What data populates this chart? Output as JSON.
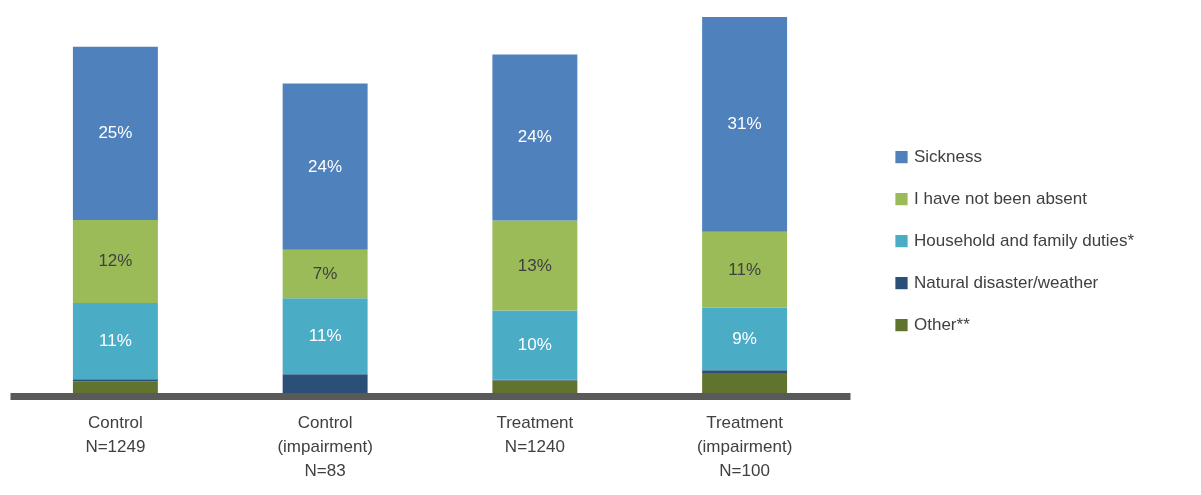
{
  "chart_data": {
    "type": "bar",
    "stacked": true,
    "tick_labels": "x",
    "legend": "right",
    "categories": [
      "Control\nN=1249",
      "Control\n(impairment)\nN=83",
      "Treatment\nN=1240",
      "Treatment\n(impairment)\nN=100"
    ],
    "series": [
      {
        "name": "Other**",
        "color": "#607430",
        "values": [
          1.7,
          0,
          1.8,
          2.9
        ],
        "value_labels": [
          null,
          null,
          null,
          null
        ]
      },
      {
        "name": "Natural disaster/weather",
        "color": "#2c4f77",
        "values": [
          0.3,
          2.7,
          0.1,
          0.4
        ],
        "value_labels": [
          null,
          null,
          null,
          null
        ]
      },
      {
        "name": "Household and family duties*",
        "color": "#4bacc6",
        "values": [
          11,
          11,
          10,
          9
        ],
        "value_labels": [
          "11%",
          "11%",
          "10%",
          "9%"
        ]
      },
      {
        "name": "I have not been absent",
        "color": "#9bbb59",
        "values": [
          12,
          7,
          13,
          11
        ],
        "value_labels": [
          "12%",
          "7%",
          "13%",
          "11%"
        ]
      },
      {
        "name": "Sickness",
        "color": "#4f81bd",
        "values": [
          25,
          24,
          24,
          31
        ],
        "value_labels": [
          "25%",
          "24%",
          "24%",
          "31%"
        ]
      }
    ]
  }
}
